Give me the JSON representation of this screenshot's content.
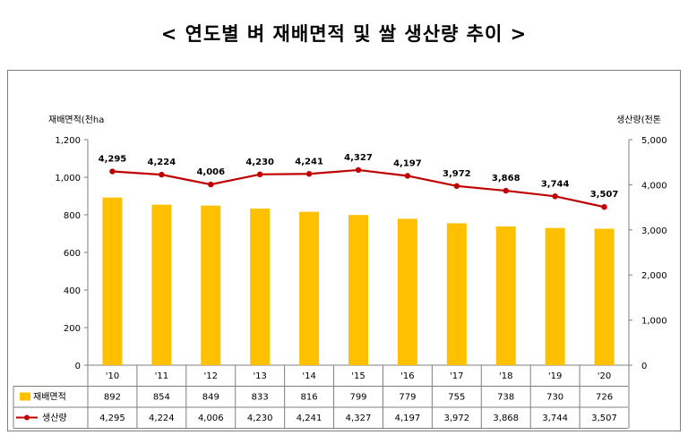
{
  "title": "< 연도별 벼 재배면적 및 쌀 생산량 추이 >",
  "chart_data": {
    "type": "bar",
    "categories": [
      "'10",
      "'11",
      "'12",
      "'13",
      "'14",
      "'15",
      "'16",
      "'17",
      "'18",
      "'19",
      "'20"
    ],
    "y_left": {
      "label": "재배면적(천ha",
      "ticks": [
        "0",
        "200",
        "400",
        "600",
        "800",
        "1,000",
        "1,200"
      ],
      "ylim": [
        0,
        1200
      ]
    },
    "y_right": {
      "label": "생산량(천톤",
      "ticks": [
        "0",
        "1,000",
        "2,000",
        "3,000",
        "4,000",
        "5,000"
      ],
      "ylim": [
        0,
        5000
      ]
    },
    "series": [
      {
        "name": "재배면적",
        "type": "bar",
        "axis": "left",
        "color": "#FFC000",
        "values": [
          892,
          854,
          849,
          833,
          816,
          799,
          779,
          755,
          738,
          730,
          726
        ],
        "labels": [
          "892",
          "854",
          "849",
          "833",
          "816",
          "799",
          "779",
          "755",
          "738",
          "730",
          "726"
        ]
      },
      {
        "name": "생산량",
        "type": "line",
        "axis": "right",
        "color": "#C00000",
        "values": [
          4295,
          4224,
          4006,
          4230,
          4241,
          4327,
          4197,
          3972,
          3868,
          3744,
          3507
        ],
        "labels": [
          "4,295",
          "4,224",
          "4,006",
          "4,230",
          "4,241",
          "4,327",
          "4,197",
          "3,972",
          "3,868",
          "3,744",
          "3,507"
        ]
      }
    ],
    "legend": "data-table",
    "grid": false
  }
}
